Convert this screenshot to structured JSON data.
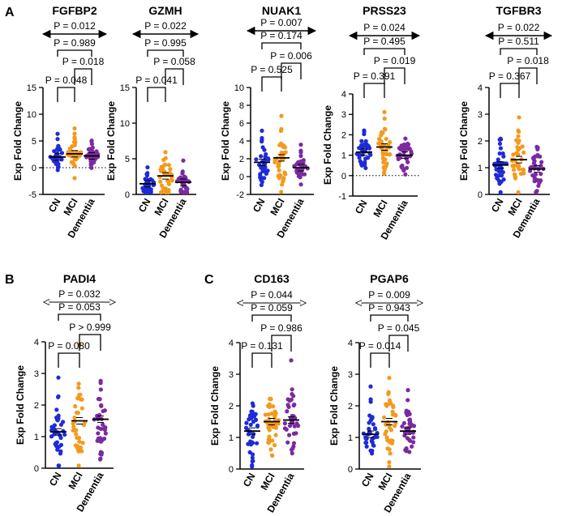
{
  "colors": {
    "CN": "#1f2bd6",
    "MCI": "#f39a1e",
    "Dementia": "#7b2aa0",
    "axis": "#000000"
  },
  "panel_labels": [
    "A",
    "B",
    "C"
  ],
  "chart_data": [
    {
      "type": "scatter",
      "panel": "A",
      "title": "FGFBP2",
      "ylabel": "Exp Fold Change",
      "categories": [
        "CN",
        "MCI",
        "Dementia"
      ],
      "ylim": [
        -5,
        15
      ],
      "yticks": [
        -5,
        0,
        5,
        10,
        15
      ],
      "zero_line": true,
      "n_points": 38,
      "points_per_group": [
        38,
        38,
        38
      ],
      "centers": [
        1.9,
        2.6,
        2.2
      ],
      "spread": [
        1.1,
        1.3,
        1.1
      ],
      "means": [
        2.0,
        2.6,
        2.2
      ],
      "comparisons": [
        {
          "pair": [
            "CN",
            "Dementia"
          ],
          "label": "P = 0.012",
          "style": "double-arrow"
        },
        {
          "pair": [
            "CN",
            "Dementia"
          ],
          "label": "P = 0.989",
          "style": "bracket"
        },
        {
          "pair": [
            "MCI",
            "Dementia"
          ],
          "label": "P = 0.018",
          "style": "bracket"
        },
        {
          "pair": [
            "CN",
            "MCI"
          ],
          "label": "P = 0.048",
          "style": "bracket"
        }
      ]
    },
    {
      "type": "scatter",
      "panel": "A",
      "title": "GZMH",
      "ylabel": "Exp Fold Change",
      "categories": [
        "CN",
        "MCI",
        "Dementia"
      ],
      "ylim": [
        0,
        15
      ],
      "yticks": [
        0,
        5,
        10,
        15
      ],
      "zero_line": false,
      "n_points": 38,
      "points_per_group": [
        38,
        38,
        38
      ],
      "centers": [
        1.3,
        2.0,
        1.3
      ],
      "spread": [
        0.9,
        2.0,
        1.0
      ],
      "means": [
        1.5,
        2.6,
        1.7
      ],
      "comparisons": [
        {
          "pair": [
            "CN",
            "Dementia"
          ],
          "label": "P = 0.022",
          "style": "double-arrow"
        },
        {
          "pair": [
            "CN",
            "Dementia"
          ],
          "label": "P = 0.995",
          "style": "bracket"
        },
        {
          "pair": [
            "MCI",
            "Dementia"
          ],
          "label": "P = 0.058",
          "style": "bracket"
        },
        {
          "pair": [
            "CN",
            "MCI"
          ],
          "label": "P = 0.041",
          "style": "bracket"
        }
      ]
    },
    {
      "type": "scatter",
      "panel": "A",
      "title": "NUAK1",
      "ylabel": "Exp Fold Change",
      "categories": [
        "CN",
        "MCI",
        "Dementia"
      ],
      "ylim": [
        -2,
        10
      ],
      "yticks": [
        -2,
        0,
        2,
        4,
        6,
        8,
        10
      ],
      "zero_line": false,
      "n_points": 38,
      "points_per_group": [
        38,
        38,
        38
      ],
      "centers": [
        1.4,
        1.8,
        1.0
      ],
      "spread": [
        1.2,
        1.5,
        0.7
      ],
      "means": [
        1.6,
        2.1,
        1.0
      ],
      "comparisons": [
        {
          "pair": [
            "CN",
            "Dementia"
          ],
          "label": "P = 0.007",
          "style": "double-arrow"
        },
        {
          "pair": [
            "CN",
            "Dementia"
          ],
          "label": "P = 0.174",
          "style": "bracket"
        },
        {
          "pair": [
            "MCI",
            "Dementia"
          ],
          "label": "P = 0.006",
          "style": "bracket"
        },
        {
          "pair": [
            "CN",
            "MCI"
          ],
          "label": "P = 0.525",
          "style": "bracket"
        }
      ]
    },
    {
      "type": "scatter",
      "panel": "A",
      "title": "PRSS23",
      "ylabel": "Exp Fold Change",
      "categories": [
        "CN",
        "MCI",
        "Dementia"
      ],
      "ylim": [
        -1,
        4
      ],
      "yticks": [
        -1,
        0,
        1,
        2,
        3,
        4
      ],
      "zero_line": true,
      "n_points": 38,
      "points_per_group": [
        38,
        38,
        38
      ],
      "centers": [
        1.1,
        1.4,
        1.0
      ],
      "spread": [
        0.45,
        0.6,
        0.5
      ],
      "means": [
        1.15,
        1.4,
        1.0
      ],
      "comparisons": [
        {
          "pair": [
            "CN",
            "Dementia"
          ],
          "label": "P = 0.024",
          "style": "double-arrow"
        },
        {
          "pair": [
            "CN",
            "Dementia"
          ],
          "label": "P = 0.495",
          "style": "bracket"
        },
        {
          "pair": [
            "MCI",
            "Dementia"
          ],
          "label": "P = 0.019",
          "style": "bracket"
        },
        {
          "pair": [
            "CN",
            "MCI"
          ],
          "label": "P = 0.391",
          "style": "bracket"
        }
      ]
    },
    {
      "type": "scatter",
      "panel": "A",
      "title": "TGFBR3",
      "ylabel": "Exp Fold Change",
      "categories": [
        "CN",
        "MCI",
        "Dementia"
      ],
      "ylim": [
        0,
        4
      ],
      "yticks": [
        0,
        1,
        2,
        3,
        4
      ],
      "zero_line": false,
      "n_points": 38,
      "points_per_group": [
        38,
        38,
        38
      ],
      "centers": [
        1.05,
        1.25,
        0.9
      ],
      "spread": [
        0.5,
        0.6,
        0.45
      ],
      "means": [
        1.1,
        1.3,
        0.95
      ],
      "comparisons": [
        {
          "pair": [
            "CN",
            "Dementia"
          ],
          "label": "P = 0.022",
          "style": "double-arrow"
        },
        {
          "pair": [
            "CN",
            "Dementia"
          ],
          "label": "P = 0.511",
          "style": "bracket"
        },
        {
          "pair": [
            "MCI",
            "Dementia"
          ],
          "label": "P = 0.018",
          "style": "bracket"
        },
        {
          "pair": [
            "CN",
            "MCI"
          ],
          "label": "P = 0.367",
          "style": "bracket"
        }
      ]
    },
    {
      "type": "scatter",
      "panel": "B",
      "title": "PADI4",
      "ylabel": "Exp Fold Change",
      "categories": [
        "CN",
        "MCI",
        "Dementia"
      ],
      "ylim": [
        0,
        4
      ],
      "yticks": [
        0,
        1,
        2,
        3,
        4
      ],
      "zero_line": false,
      "n_points": 38,
      "points_per_group": [
        38,
        38,
        38
      ],
      "centers": [
        1.1,
        1.45,
        1.5
      ],
      "spread": [
        0.5,
        0.7,
        0.6
      ],
      "means": [
        1.15,
        1.5,
        1.55
      ],
      "comparisons": [
        {
          "pair": [
            "CN",
            "Dementia"
          ],
          "label": "P = 0.032",
          "style": "open-arrow"
        },
        {
          "pair": [
            "CN",
            "Dementia"
          ],
          "label": "P = 0.053",
          "style": "bracket"
        },
        {
          "pair": [
            "MCI",
            "Dementia"
          ],
          "label": "P > 0.999",
          "style": "bracket"
        },
        {
          "pair": [
            "CN",
            "MCI"
          ],
          "label": "P = 0.080",
          "style": "bracket"
        }
      ]
    },
    {
      "type": "scatter",
      "panel": "C",
      "title": "CD163",
      "ylabel": "Exp Fold Change",
      "categories": [
        "CN",
        "MCI",
        "Dementia"
      ],
      "ylim": [
        0,
        4
      ],
      "yticks": [
        0,
        1,
        2,
        3,
        4
      ],
      "zero_line": false,
      "n_points": 38,
      "points_per_group": [
        38,
        38,
        38
      ],
      "centers": [
        1.2,
        1.45,
        1.5
      ],
      "spread": [
        0.5,
        0.6,
        0.6
      ],
      "means": [
        1.2,
        1.5,
        1.55
      ],
      "comparisons": [
        {
          "pair": [
            "CN",
            "Dementia"
          ],
          "label": "P = 0.044",
          "style": "open-arrow"
        },
        {
          "pair": [
            "CN",
            "Dementia"
          ],
          "label": "P = 0.059",
          "style": "bracket"
        },
        {
          "pair": [
            "MCI",
            "Dementia"
          ],
          "label": "P = 0.986",
          "style": "bracket"
        },
        {
          "pair": [
            "CN",
            "MCI"
          ],
          "label": "P = 0.131",
          "style": "bracket"
        }
      ]
    },
    {
      "type": "scatter",
      "panel": "C",
      "title": "PGAP6",
      "ylabel": "Exp Fold Change",
      "categories": [
        "CN",
        "MCI",
        "Dementia"
      ],
      "ylim": [
        0,
        4
      ],
      "yticks": [
        0,
        1,
        2,
        3,
        4
      ],
      "zero_line": false,
      "n_points": 38,
      "points_per_group": [
        38,
        38,
        38
      ],
      "centers": [
        1.1,
        1.45,
        1.15
      ],
      "spread": [
        0.4,
        0.55,
        0.45
      ],
      "means": [
        1.1,
        1.5,
        1.2
      ],
      "comparisons": [
        {
          "pair": [
            "CN",
            "Dementia"
          ],
          "label": "P = 0.009",
          "style": "open-arrow"
        },
        {
          "pair": [
            "CN",
            "Dementia"
          ],
          "label": "P = 0.943",
          "style": "bracket"
        },
        {
          "pair": [
            "MCI",
            "Dementia"
          ],
          "label": "P = 0.045",
          "style": "bracket"
        },
        {
          "pair": [
            "CN",
            "MCI"
          ],
          "label": "P = 0.014",
          "style": "bracket"
        }
      ]
    }
  ]
}
